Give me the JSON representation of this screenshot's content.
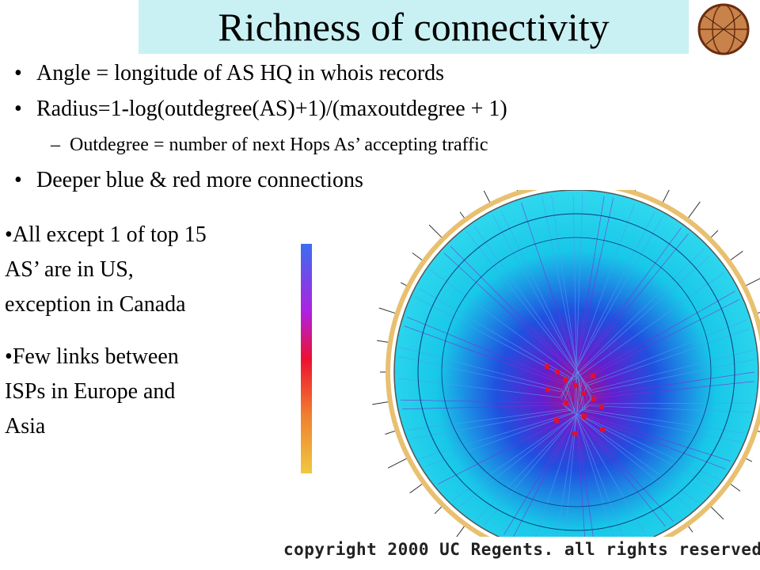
{
  "header": {
    "title": "Richness of connectivity"
  },
  "bullets": [
    "Angle = longitude of AS HQ in whois records",
    "Radius=1-log(outdegree(AS)+1)/(maxoutdegree + 1)",
    "Outdegree = number of next Hops As’ accepting traffic",
    "Deeper blue & red more connections"
  ],
  "side_notes": [
    [
      "All except 1 of top 15",
      "AS’ are in US,",
      "exception in Canada"
    ],
    [
      "Few links between",
      "ISPs in Europe and",
      "Asia"
    ]
  ],
  "figure": {
    "caption": "copyright 2000 UC Regents.  all rights reserved."
  }
}
